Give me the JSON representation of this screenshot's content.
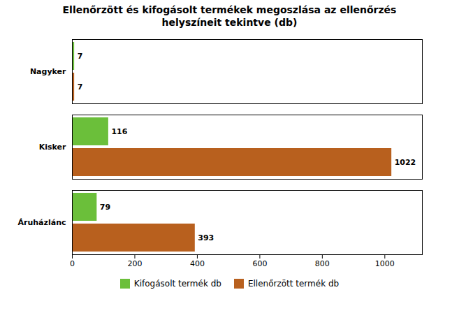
{
  "chart_data": {
    "type": "bar",
    "orientation": "horizontal",
    "title": "Ellenőrzött és kifogásolt termékek megoszlása az ellenőrzés\nhelyszíneit tekintve (db)",
    "categories": [
      "Áruházlánc",
      "Kisker",
      "Nagyker"
    ],
    "series": [
      {
        "name": "Kifogásolt termék db",
        "color": "#6BBF3A",
        "values": [
          79,
          116,
          7
        ]
      },
      {
        "name": "Ellenőrzött termék db",
        "color": "#B8601E",
        "values": [
          393,
          1022,
          7
        ]
      }
    ],
    "xlim": [
      0,
      1120
    ],
    "xticks": [
      0,
      200,
      400,
      600,
      800,
      1000
    ],
    "data_labels": true,
    "grid": false,
    "legend": "bottom"
  }
}
